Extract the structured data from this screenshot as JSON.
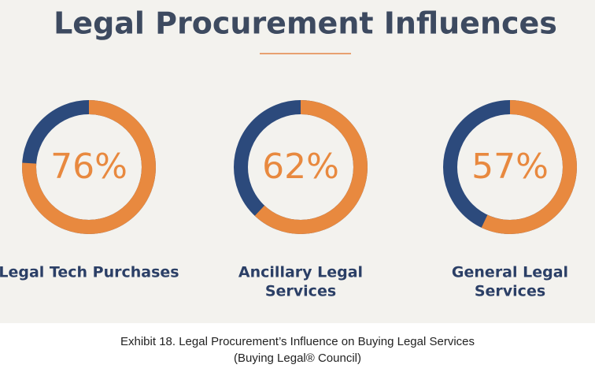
{
  "title": "Legal Procurement Influences",
  "caption": [
    "Exhibit 18. Legal Procurement’s Influence on Buying Legal Services",
    "(Buying Legal® Council)"
  ],
  "chart_data": [
    {
      "type": "donut",
      "title": [
        "Legal Tech Purchases"
      ],
      "values": [
        76
      ],
      "value_labels": [
        "76%"
      ],
      "color": "#e8893f",
      "track_color": "#2c4a7c"
    },
    {
      "type": "donut",
      "title": [
        "Ancillary Legal",
        "Services"
      ],
      "values": [
        62
      ],
      "value_labels": [
        "62%"
      ],
      "color": "#e8893f",
      "track_color": "#2c4a7c"
    },
    {
      "type": "donut",
      "title": [
        "General Legal",
        "Services"
      ],
      "values": [
        57
      ],
      "value_labels": [
        "57%"
      ],
      "color": "#e8893f",
      "track_color": "#2c4a7c"
    }
  ]
}
